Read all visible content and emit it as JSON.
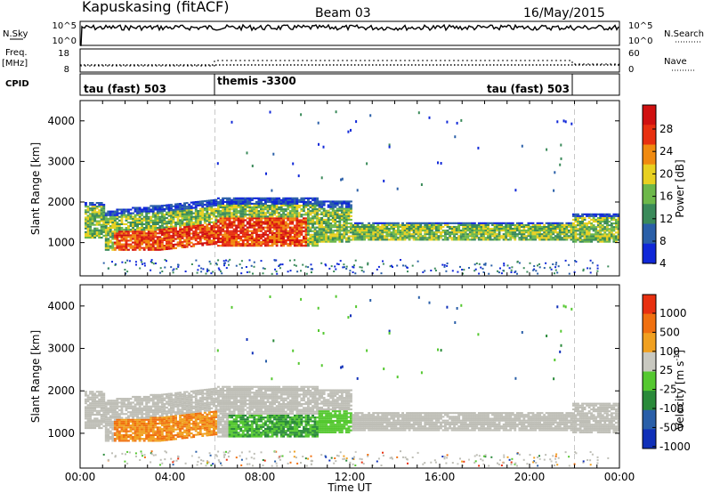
{
  "header": {
    "site": "Kapuskasing (fitACF)",
    "beam": "Beam 03",
    "date": "16/May/2015"
  },
  "strips": {
    "nsky": {
      "label": "N.Sky",
      "ticks": [
        "10^5",
        "10^0"
      ]
    },
    "nsearch": {
      "label": "N.Search",
      "ticks": [
        "10^5",
        "10^0"
      ]
    },
    "freq": {
      "label_top": "Freq.",
      "label_unit": "[MHz]",
      "ticks": [
        "18",
        "8"
      ]
    },
    "nave": {
      "label": "Nave",
      "ticks": [
        "60",
        "0"
      ]
    },
    "cpid": {
      "label": "CPID",
      "segments": [
        "tau (fast) 503",
        "themis -3300",
        "tau (fast) 503"
      ]
    }
  },
  "chart_data": [
    {
      "type": "heatmap",
      "panel": "power",
      "ylabel": "Slant Range [km]",
      "xlabel": "",
      "ylim": [
        180,
        4500
      ],
      "yticks": [
        "4000",
        "3000",
        "2000",
        "1000"
      ],
      "ytick_values": [
        4000,
        3000,
        2000,
        1000
      ],
      "xlim_hours": [
        0,
        24
      ],
      "colorbar": {
        "label": "Power [dB]",
        "ticks": [
          "28",
          "24",
          "20",
          "16",
          "12",
          "8",
          "4"
        ],
        "tick_values": [
          28,
          24,
          20,
          16,
          12,
          8,
          4
        ],
        "range": [
          0,
          30
        ],
        "colors": [
          "#1028d8",
          "#2a5fa8",
          "#3a8a5a",
          "#6db84a",
          "#e8d020",
          "#f08a10",
          "#e83010",
          "#d01010"
        ]
      },
      "cpid_change_hours": [
        6,
        22
      ]
    },
    {
      "type": "heatmap",
      "panel": "velocity",
      "ylabel": "Slant Range [km]",
      "xlabel": "Time UT",
      "ylim": [
        180,
        4500
      ],
      "yticks": [
        "4000",
        "3000",
        "2000",
        "1000"
      ],
      "ytick_values": [
        4000,
        3000,
        2000,
        1000
      ],
      "xticks": [
        "00:00",
        "04:00",
        "08:00",
        "12:00",
        "16:00",
        "20:00",
        "00:00"
      ],
      "xtick_hours": [
        0,
        4,
        8,
        12,
        16,
        20,
        24
      ],
      "colorbar": {
        "label": "Velocity [m s",
        "label_sup": "-1",
        "label_close": "]",
        "ticks": [
          "1000",
          "500",
          "100",
          "25",
          "-25",
          "-100",
          "-500",
          "-1000"
        ],
        "colors": [
          "#1030b8",
          "#2a5fa8",
          "#2a8a3a",
          "#55c830",
          "#c8c8c0",
          "#f0a020",
          "#f07010",
          "#e83010"
        ],
        "ground_scatter": "#bebeb6"
      },
      "cpid_change_hours": [
        6,
        22
      ]
    }
  ]
}
